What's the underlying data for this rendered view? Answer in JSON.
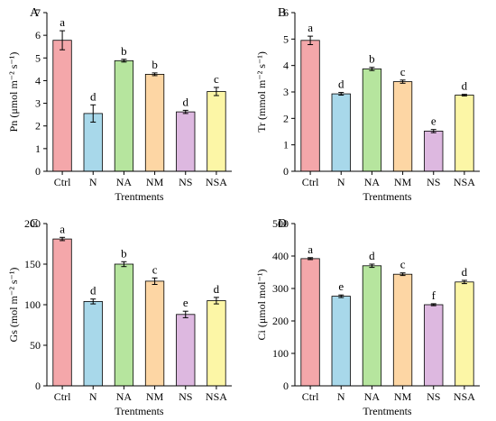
{
  "chart_data": [
    {
      "type": "bar",
      "panel_label": "A",
      "ylabel": "Pn (μmol m⁻² s⁻¹)",
      "xlabel": "Trentments",
      "categories": [
        "Ctrl",
        "N",
        "NA",
        "NM",
        "NS",
        "NSA"
      ],
      "values": [
        5.78,
        2.55,
        4.88,
        4.28,
        2.62,
        3.52
      ],
      "errors": [
        0.42,
        0.38,
        0.06,
        0.06,
        0.07,
        0.18
      ],
      "letters": [
        "a",
        "d",
        "b",
        "b",
        "d",
        "c"
      ],
      "ylim": [
        0,
        7
      ],
      "yticks": [
        0,
        1,
        2,
        3,
        4,
        5,
        6,
        7
      ]
    },
    {
      "type": "bar",
      "panel_label": "B",
      "ylabel": "Tr (mmol m⁻² s⁻¹)",
      "xlabel": "Trentments",
      "categories": [
        "Ctrl",
        "N",
        "NA",
        "NM",
        "NS",
        "NSA"
      ],
      "values": [
        4.95,
        2.93,
        3.87,
        3.39,
        1.52,
        2.88
      ],
      "errors": [
        0.16,
        0.05,
        0.06,
        0.06,
        0.06,
        0.03
      ],
      "letters": [
        "a",
        "d",
        "b",
        "c",
        "e",
        "d"
      ],
      "ylim": [
        0,
        6
      ],
      "yticks": [
        0,
        1,
        2,
        3,
        4,
        5,
        6
      ]
    },
    {
      "type": "bar",
      "panel_label": "C",
      "ylabel": "Gs (mol m⁻² s⁻¹)",
      "xlabel": "Trentments",
      "categories": [
        "Ctrl",
        "N",
        "NA",
        "NM",
        "NS",
        "NSA"
      ],
      "values": [
        181,
        104,
        150,
        129,
        88,
        105
      ],
      "errors": [
        2,
        3,
        3,
        4,
        4,
        4
      ],
      "letters": [
        "a",
        "d",
        "b",
        "c",
        "e",
        "d"
      ],
      "ylim": [
        0,
        200
      ],
      "yticks": [
        0,
        50,
        100,
        150,
        200
      ]
    },
    {
      "type": "bar",
      "panel_label": "D",
      "ylabel": "Ci (μmol mol⁻¹)",
      "xlabel": "Trentments",
      "categories": [
        "Ctrl",
        "N",
        "NA",
        "NM",
        "NS",
        "NSA"
      ],
      "values": [
        392,
        276,
        370,
        344,
        250,
        320
      ],
      "errors": [
        3,
        4,
        5,
        4,
        3,
        5
      ],
      "letters": [
        "a",
        "e",
        "d",
        "c",
        "f",
        "d"
      ],
      "ylim": [
        0,
        500
      ],
      "yticks": [
        0,
        100,
        200,
        300,
        400,
        500
      ]
    }
  ],
  "colors": {
    "bars": [
      "#f4a7aa",
      "#a8d8ea",
      "#b6e59e",
      "#fdd6a4",
      "#ddb8e0",
      "#fcf6a6"
    ]
  }
}
